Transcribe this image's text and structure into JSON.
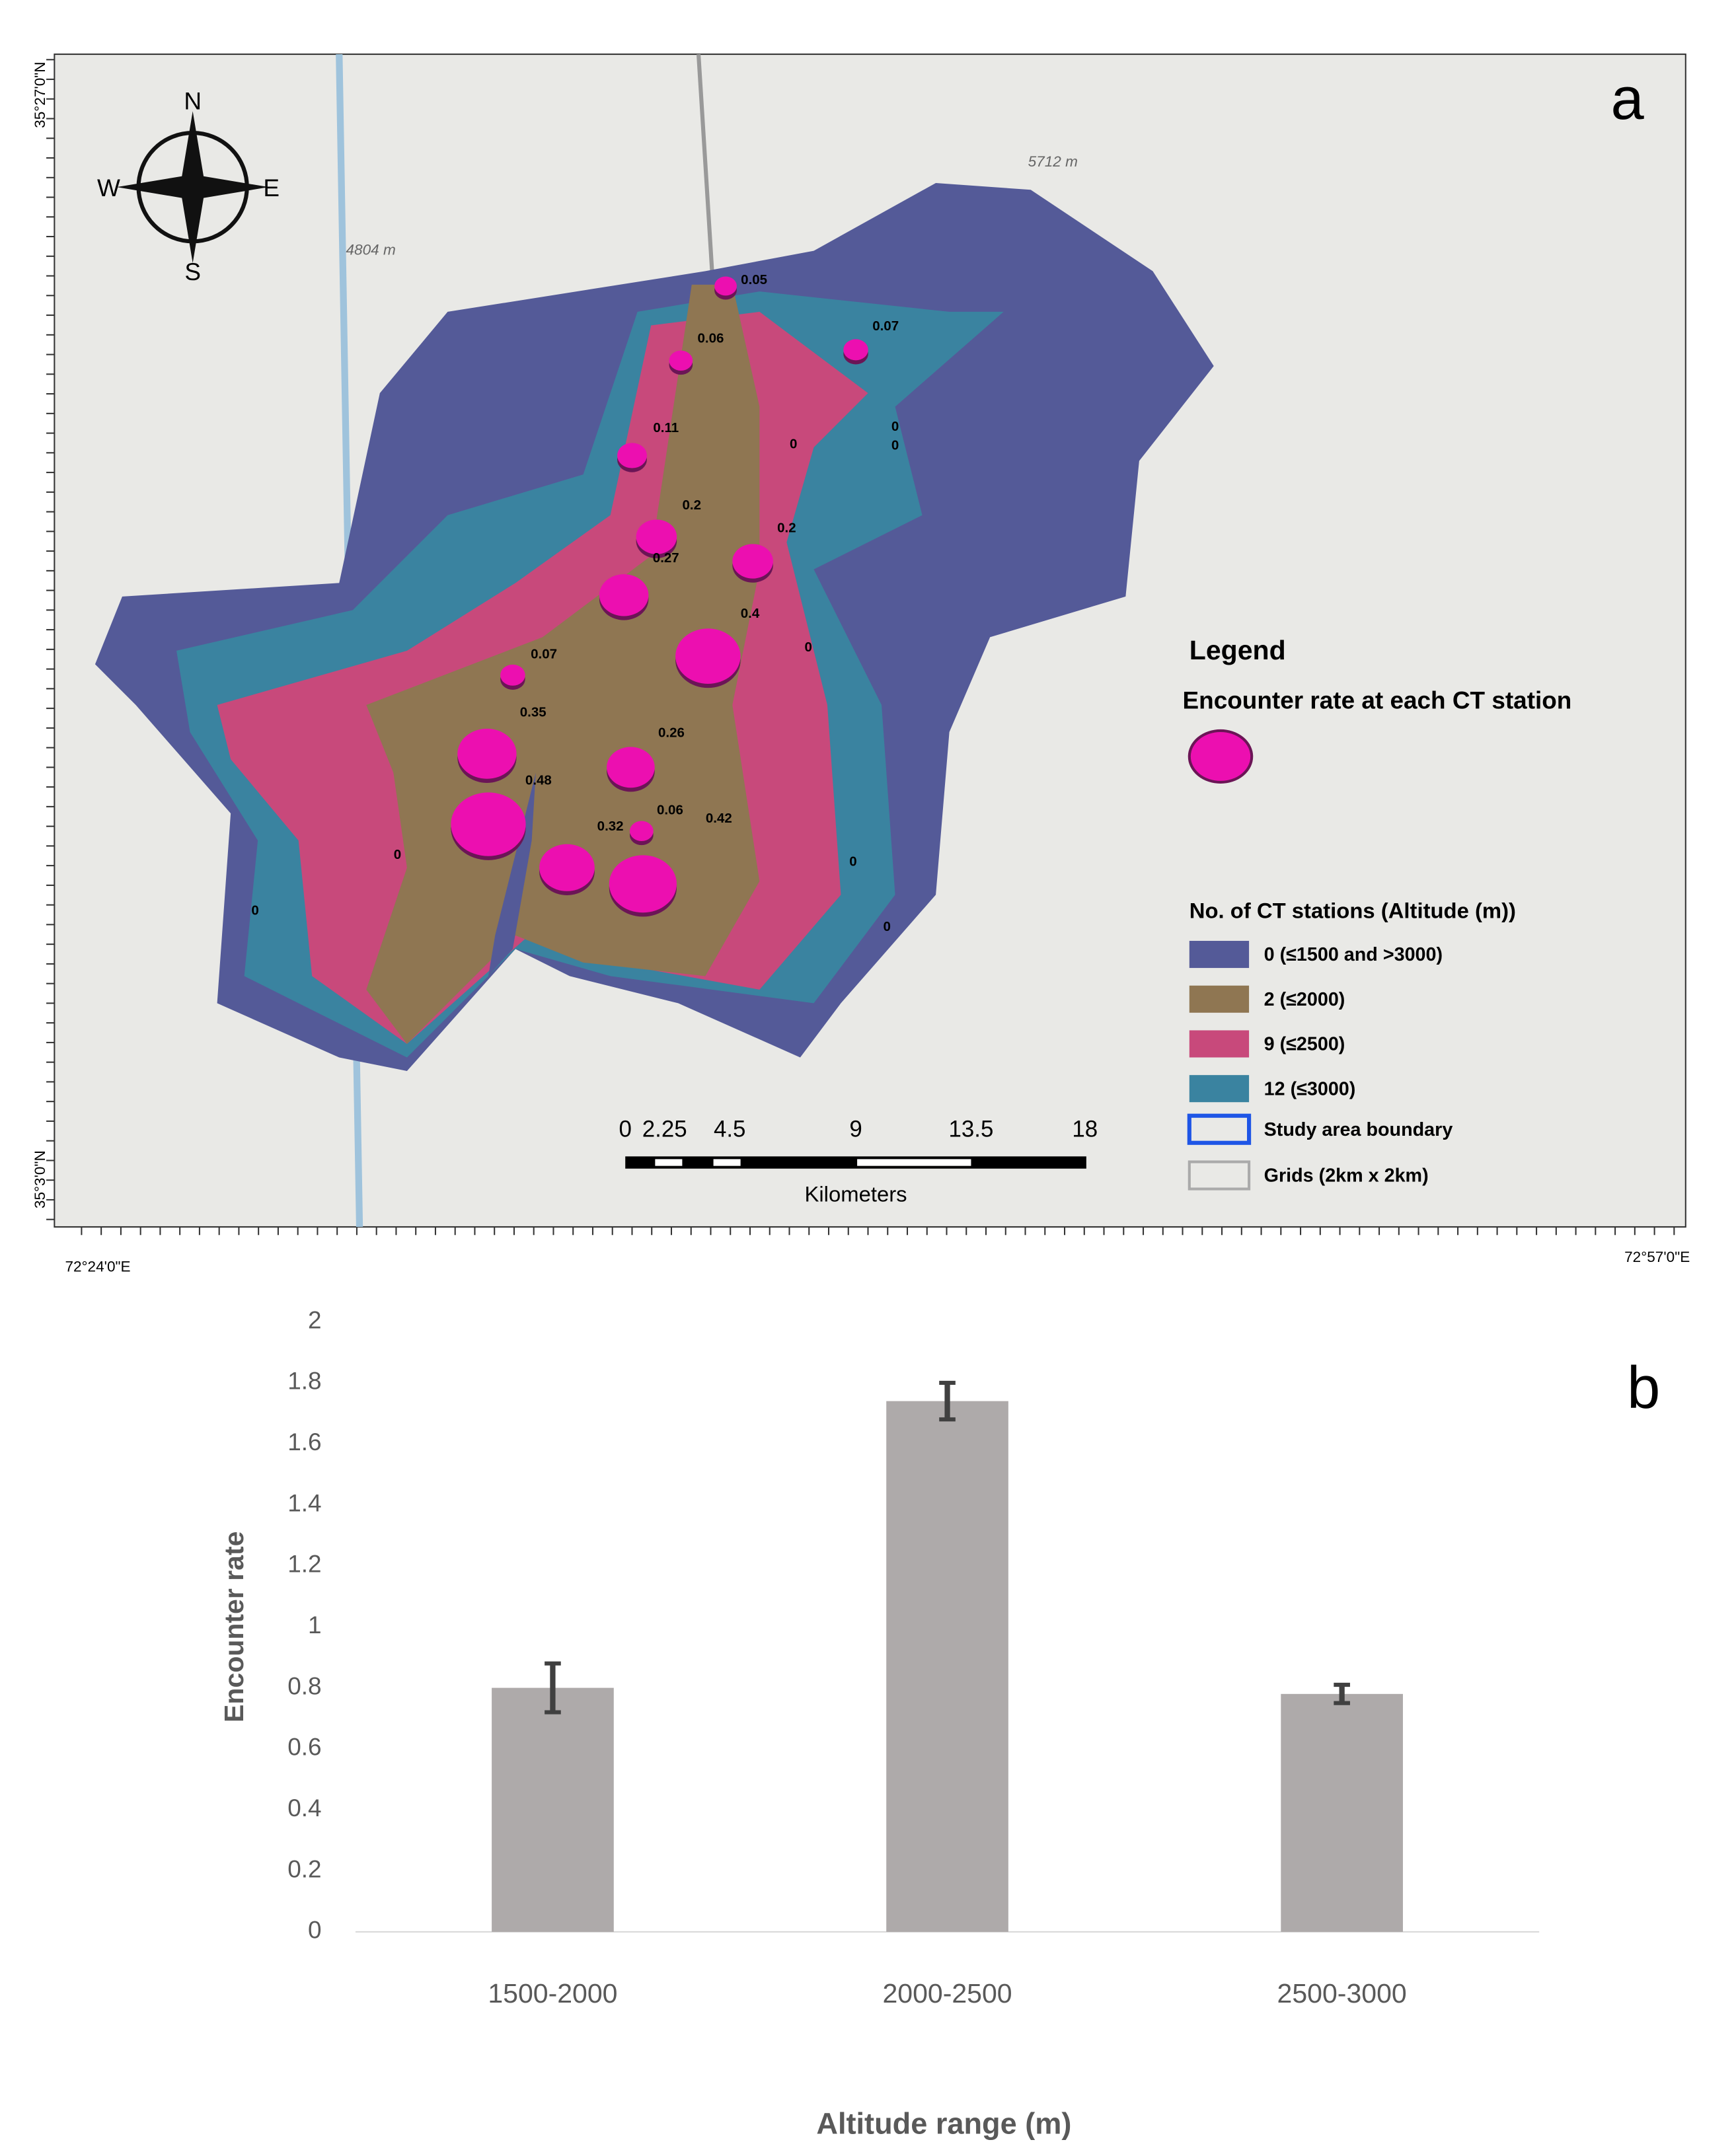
{
  "map": {
    "panel_label": "a",
    "coords": {
      "top_lat": "35°27'0\"N",
      "bottom_lat": "35°3'0\"N",
      "left_lon": "72°24'0\"E",
      "right_lon": "72°57'0\"E"
    },
    "elevations": [
      "5712 m",
      "4804 m"
    ],
    "compass": {
      "n": "N",
      "s": "S",
      "e": "E",
      "w": "W"
    },
    "stations": [
      0.05,
      0.06,
      0.07,
      0.11,
      0,
      0,
      0,
      0.2,
      0.2,
      0.27,
      0.4,
      0,
      0.07,
      0.35,
      0.26,
      0.48,
      0.06,
      0.32,
      0.42,
      0,
      0,
      0,
      0
    ],
    "legend": {
      "title": "Legend",
      "rate_title": "Encounter rate at each CT station",
      "zones_title": "No. of CT stations (Altitude (m))",
      "zones": [
        {
          "label": "0 (≤1500 and >3000)",
          "color": "#545a98"
        },
        {
          "label": "2 (≤2000)",
          "color": "#8f7652"
        },
        {
          "label": "9 (≤2500)",
          "color": "#c8497b"
        },
        {
          "label": "12 (≤3000)",
          "color": "#3a83a0"
        }
      ],
      "boundary": "Study area boundary",
      "grids": "Grids (2km x 2km)"
    },
    "scale": {
      "ticks": [
        "0",
        "2.25",
        "4.5",
        "9",
        "13.5",
        "18"
      ],
      "unit": "Kilometers"
    }
  },
  "chart_data": {
    "type": "bar",
    "panel_label": "b",
    "categories": [
      "1500-2000",
      "2000-2500",
      "2500-3000"
    ],
    "values": [
      0.8,
      1.74,
      0.78
    ],
    "errors": [
      0.08,
      0.06,
      0.03
    ],
    "color": "#aeaaaa",
    "ylim": [
      0,
      2
    ],
    "yticks": [
      0,
      0.2,
      0.4,
      0.6,
      0.8,
      1,
      1.2,
      1.4,
      1.6,
      1.8,
      2
    ],
    "y_label": "Encounter rate",
    "x_label": "Altitude range (m)"
  }
}
